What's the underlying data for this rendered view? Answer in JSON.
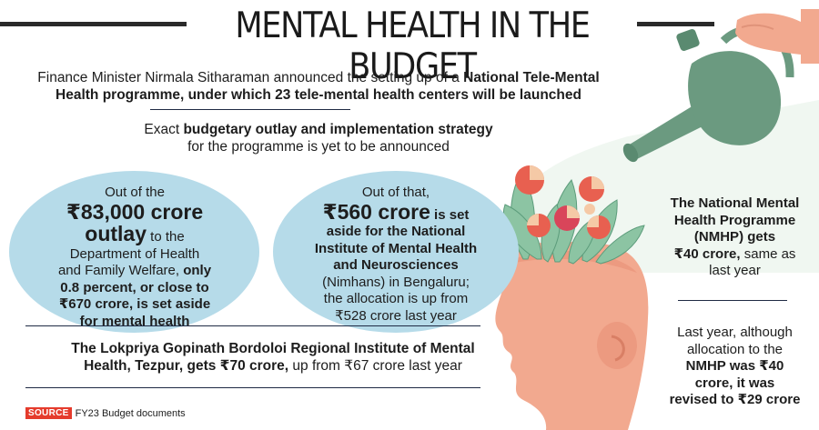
{
  "title": "MENTAL HEALTH IN THE BUDGET",
  "intro": {
    "lead": "Finance Minister Nirmala Sitharaman announced the setting up of a ",
    "bold1": "National Tele-Mental",
    "line2_bold": "Health programme, under which 23 tele-mental health centers will be launched"
  },
  "outlay": {
    "lead": "Exact ",
    "bold": "budgetary outlay and implementation strategy",
    "line2": "for the programme is yet to be announced"
  },
  "circle_left": {
    "l1": "Out of the",
    "big1": "₹83,000 crore",
    "big2": "outlay",
    "l2": " to the",
    "l3": "Department of Health",
    "l4a": "and Family Welfare, ",
    "l4b": "only",
    "l5": "0.8 percent, or close to",
    "l6": "₹670 crore, is set aside",
    "l7": "for mental health"
  },
  "circle_right": {
    "l1": "Out of that,",
    "big1": "₹560 crore",
    "l2": " is set",
    "l3": "aside for the National",
    "l4": "Institute of Mental Health",
    "l5": "and Neurosciences",
    "l6": "(Nimhans) in Bengaluru;",
    "l7": "the allocation is up from",
    "l8": "₹528 crore last year"
  },
  "lokpriya": {
    "bold1": "The Lokpriya Gopinath Bordoloi Regional Institute of Mental",
    "bold2": "Health, Tezpur, gets ₹70 crore,",
    "rest": " up from ₹67 crore last year"
  },
  "right_top": {
    "b1": "The National Mental",
    "b2": "Health Programme",
    "b3": "(NMHP) gets",
    "b4": "₹40 crore,",
    "r4": " same as",
    "r5": "last year"
  },
  "right_bottom": {
    "r1": "Last year, although",
    "r2": "allocation to the",
    "b3": "NMHP was ₹40",
    "b4": "crore, it was",
    "b5": "revised to ₹29 crore"
  },
  "source": {
    "tag": "SOURCE",
    "text": "FY23 Budget documents"
  },
  "colors": {
    "circle": "#b6dbe9",
    "head": "#f2a98f",
    "can": "#6b9a80",
    "source_tag": "#e53b2c"
  }
}
